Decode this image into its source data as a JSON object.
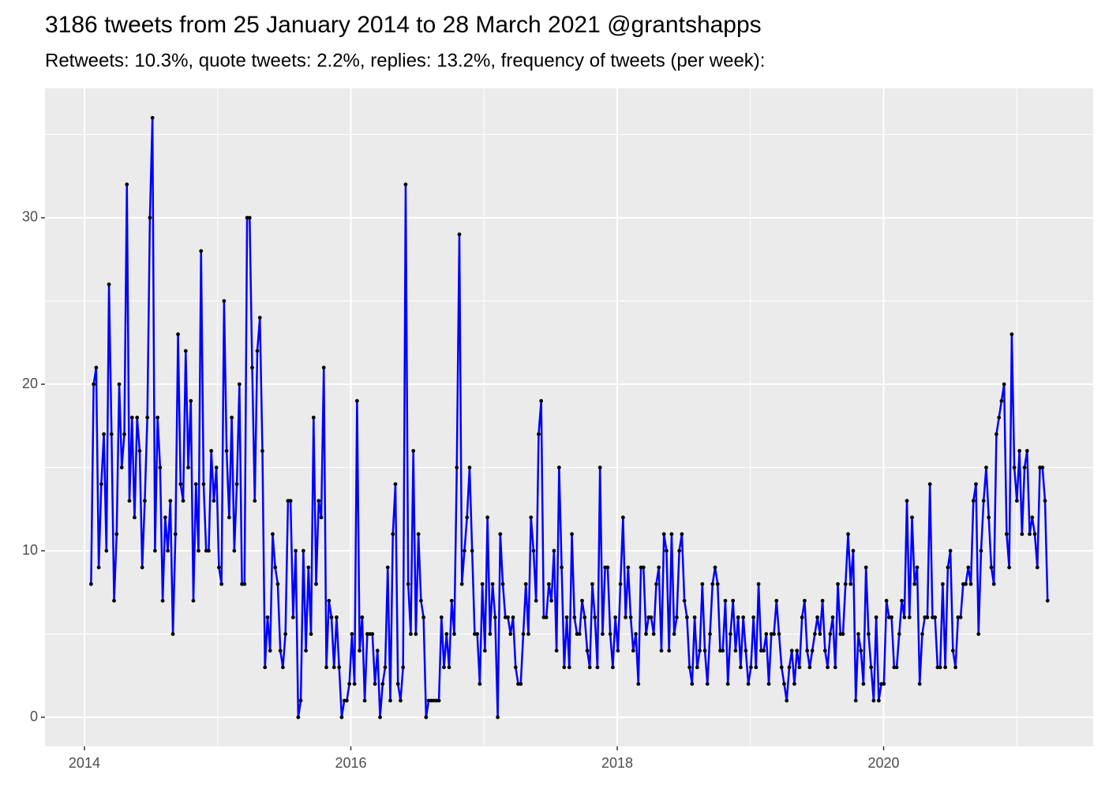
{
  "chart_data": {
    "type": "line",
    "title": "3186 tweets from 25 January 2014 to 28 March 2021 @grantshapps",
    "subtitle": "Retweets: 10.3%, quote tweets: 2.2%, replies: 13.2%, frequency of tweets (per week):",
    "xlim": [
      2013.704,
      2021.573
    ],
    "xticks": [
      2014,
      2016,
      2018,
      2020
    ],
    "ylim": [
      -1.75,
      37.77
    ],
    "yticks": [
      0,
      10,
      20,
      30
    ],
    "grid": true,
    "point_color": "#000000",
    "x": [
      2014.05,
      2014.0692,
      2014.0884,
      2014.1076,
      2014.1268,
      2014.146,
      2014.1652,
      2014.1844,
      2014.2036,
      2014.2228,
      2014.242,
      2014.2612,
      2014.2804,
      2014.2996,
      2014.3188,
      2014.338,
      2014.3572,
      2014.3764,
      2014.3956,
      2014.4148,
      2014.434,
      2014.4532,
      2014.4724,
      2014.4916,
      2014.5108,
      2014.53,
      2014.5492,
      2014.5684,
      2014.5876,
      2014.6068,
      2014.626,
      2014.6452,
      2014.6644,
      2014.6836,
      2014.7028,
      2014.722,
      2014.7412,
      2014.7604,
      2014.7796,
      2014.7988,
      2014.818,
      2014.8372,
      2014.8564,
      2014.8756,
      2014.8948,
      2014.914,
      2014.9332,
      2014.9524,
      2014.9716,
      2014.9908,
      2015.01,
      2015.0292,
      2015.0484,
      2015.0676,
      2015.0868,
      2015.106,
      2015.1252,
      2015.1444,
      2015.1636,
      2015.1828,
      2015.202,
      2015.2212,
      2015.2404,
      2015.2596,
      2015.2788,
      2015.298,
      2015.3172,
      2015.3364,
      2015.3556,
      2015.3748,
      2015.394,
      2015.4132,
      2015.4324,
      2015.4516,
      2015.4708,
      2015.49,
      2015.5092,
      2015.5284,
      2015.5476,
      2015.5668,
      2015.586,
      2015.6052,
      2015.6244,
      2015.6436,
      2015.6628,
      2015.682,
      2015.7012,
      2015.7204,
      2015.7396,
      2015.7588,
      2015.778,
      2015.7972,
      2015.8164,
      2015.8356,
      2015.8548,
      2015.874,
      2015.8932,
      2015.9124,
      2015.9316,
      2015.9508,
      2015.97,
      2015.9892,
      2016.0084,
      2016.0276,
      2016.0468,
      2016.066,
      2016.0852,
      2016.1044,
      2016.1236,
      2016.1428,
      2016.162,
      2016.1812,
      2016.2004,
      2016.2196,
      2016.2388,
      2016.258,
      2016.2772,
      2016.2964,
      2016.3156,
      2016.3348,
      2016.354,
      2016.3732,
      2016.3924,
      2016.4116,
      2016.4308,
      2016.45,
      2016.4692,
      2016.4884,
      2016.5076,
      2016.5268,
      2016.546,
      2016.5652,
      2016.5844,
      2016.6036,
      2016.6228,
      2016.642,
      2016.6612,
      2016.6804,
      2016.6996,
      2016.7188,
      2016.738,
      2016.7572,
      2016.7764,
      2016.7956,
      2016.8148,
      2016.834,
      2016.8532,
      2016.8724,
      2016.8916,
      2016.9108,
      2016.93,
      2016.9492,
      2016.9684,
      2016.9876,
      2017.0068,
      2017.026,
      2017.0452,
      2017.0644,
      2017.0836,
      2017.1028,
      2017.122,
      2017.1412,
      2017.1604,
      2017.1796,
      2017.1988,
      2017.218,
      2017.2372,
      2017.2564,
      2017.2756,
      2017.2948,
      2017.314,
      2017.3332,
      2017.3524,
      2017.3716,
      2017.3908,
      2017.41,
      2017.4292,
      2017.4484,
      2017.4676,
      2017.4868,
      2017.506,
      2017.5252,
      2017.5444,
      2017.5636,
      2017.5828,
      2017.602,
      2017.6212,
      2017.6404,
      2017.6596,
      2017.6788,
      2017.698,
      2017.7172,
      2017.7364,
      2017.7556,
      2017.7748,
      2017.794,
      2017.8132,
      2017.8324,
      2017.8516,
      2017.8708,
      2017.89,
      2017.9092,
      2017.9284,
      2017.9476,
      2017.9668,
      2017.986,
      2018.0052,
      2018.0244,
      2018.0436,
      2018.0628,
      2018.082,
      2018.1012,
      2018.1204,
      2018.1396,
      2018.1588,
      2018.178,
      2018.1972,
      2018.2164,
      2018.2356,
      2018.2548,
      2018.274,
      2018.2932,
      2018.3124,
      2018.3316,
      2018.3508,
      2018.37,
      2018.3892,
      2018.4084,
      2018.4276,
      2018.4468,
      2018.466,
      2018.4852,
      2018.5044,
      2018.5236,
      2018.5428,
      2018.562,
      2018.5812,
      2018.6004,
      2018.6196,
      2018.6388,
      2018.658,
      2018.6772,
      2018.6964,
      2018.7156,
      2018.7348,
      2018.754,
      2018.7732,
      2018.7924,
      2018.8116,
      2018.8308,
      2018.85,
      2018.8692,
      2018.8884,
      2018.9076,
      2018.9268,
      2018.946,
      2018.9652,
      2018.9844,
      2019.0036,
      2019.0228,
      2019.042,
      2019.0612,
      2019.0804,
      2019.0996,
      2019.1188,
      2019.138,
      2019.1572,
      2019.1764,
      2019.1956,
      2019.2148,
      2019.234,
      2019.2532,
      2019.2724,
      2019.2916,
      2019.3108,
      2019.33,
      2019.3492,
      2019.3684,
      2019.3876,
      2019.4068,
      2019.426,
      2019.4452,
      2019.4644,
      2019.4836,
      2019.5028,
      2019.522,
      2019.5412,
      2019.5604,
      2019.5796,
      2019.5988,
      2019.618,
      2019.6372,
      2019.6564,
      2019.6756,
      2019.6948,
      2019.714,
      2019.7332,
      2019.7524,
      2019.7716,
      2019.7908,
      2019.81,
      2019.8292,
      2019.8484,
      2019.8676,
      2019.8868,
      2019.906,
      2019.9252,
      2019.9444,
      2019.9636,
      2019.9828,
      2020.002,
      2020.0212,
      2020.0404,
      2020.0596,
      2020.0788,
      2020.098,
      2020.1172,
      2020.1364,
      2020.1556,
      2020.1748,
      2020.194,
      2020.2132,
      2020.2324,
      2020.2516,
      2020.2708,
      2020.29,
      2020.3092,
      2020.3284,
      2020.3476,
      2020.3668,
      2020.386,
      2020.4052,
      2020.4244,
      2020.4436,
      2020.4628,
      2020.482,
      2020.5012,
      2020.5204,
      2020.5396,
      2020.5588,
      2020.578,
      2020.5972,
      2020.6164,
      2020.6356,
      2020.6548,
      2020.674,
      2020.6932,
      2020.7124,
      2020.7316,
      2020.7508,
      2020.77,
      2020.7892,
      2020.8084,
      2020.8276,
      2020.8468,
      2020.866,
      2020.8852,
      2020.9044,
      2020.9236,
      2020.9428,
      2020.962,
      2020.9812,
      2021.0004,
      2021.0196,
      2021.0388,
      2021.058,
      2021.0772,
      2021.0964,
      2021.1156,
      2021.1348,
      2021.154,
      2021.1732,
      2021.1924,
      2021.2116,
      2021.2308
    ],
    "series": [
      {
        "color": "#0000ff",
        "values": [
          8,
          20,
          21,
          9,
          14,
          17,
          10,
          26,
          17,
          7,
          11,
          20,
          15,
          17,
          32,
          13,
          18,
          12,
          18,
          16,
          9,
          13,
          18,
          30,
          36,
          10,
          18,
          15,
          7,
          12,
          10,
          13,
          5,
          11,
          23,
          14,
          13,
          22,
          15,
          19,
          7,
          14,
          10,
          28,
          14,
          10,
          10,
          16,
          13,
          15,
          9,
          8,
          25,
          16,
          12,
          18,
          10,
          14,
          20,
          8,
          8,
          30,
          30,
          21,
          13,
          22,
          24,
          16,
          3,
          6,
          4,
          11,
          9,
          8,
          4,
          3,
          5,
          13,
          13,
          6,
          10,
          0,
          1,
          10,
          4,
          9,
          5,
          18,
          8,
          13,
          12,
          21,
          3,
          7,
          6,
          3,
          6,
          3,
          0,
          1,
          1,
          2,
          5,
          2,
          19,
          4,
          6,
          1,
          5,
          5,
          5,
          2,
          4,
          0,
          2,
          3,
          9,
          1,
          11,
          14,
          2,
          1,
          3,
          32,
          8,
          5,
          16,
          5,
          11,
          7,
          6,
          0,
          1,
          1,
          1,
          1,
          1,
          6,
          3,
          5,
          3,
          7,
          5,
          15,
          29,
          8,
          10,
          12,
          15,
          10,
          5,
          5,
          2,
          8,
          4,
          12,
          5,
          8,
          6,
          0,
          11,
          8,
          6,
          6,
          5,
          6,
          3,
          2,
          2,
          5,
          8,
          5,
          12,
          10,
          7,
          17,
          19,
          6,
          6,
          8,
          7,
          10,
          4,
          15,
          9,
          3,
          6,
          3,
          11,
          6,
          5,
          5,
          7,
          6,
          4,
          3,
          8,
          6,
          3,
          15,
          5,
          9,
          9,
          5,
          3,
          6,
          4,
          8,
          12,
          6,
          9,
          6,
          4,
          5,
          2,
          9,
          9,
          5,
          6,
          6,
          5,
          8,
          9,
          4,
          11,
          10,
          4,
          11,
          5,
          6,
          10,
          11,
          7,
          6,
          3,
          2,
          6,
          3,
          4,
          8,
          4,
          2,
          5,
          8,
          9,
          8,
          4,
          4,
          7,
          2,
          5,
          7,
          4,
          6,
          3,
          6,
          4,
          2,
          3,
          6,
          3,
          8,
          4,
          4,
          5,
          2,
          5,
          5,
          7,
          5,
          3,
          2,
          1,
          3,
          4,
          2,
          4,
          3,
          6,
          7,
          4,
          3,
          4,
          5,
          6,
          5,
          7,
          4,
          3,
          5,
          6,
          3,
          8,
          5,
          5,
          8,
          11,
          8,
          10,
          1,
          5,
          4,
          2,
          9,
          5,
          3,
          1,
          6,
          1,
          2,
          2,
          7,
          6,
          6,
          3,
          3,
          5,
          7,
          6,
          13,
          6,
          12,
          8,
          9,
          2,
          5,
          6,
          6,
          14,
          6,
          6,
          3,
          3,
          8,
          3,
          9,
          10,
          4,
          3,
          6,
          6,
          8,
          8,
          9,
          8,
          13,
          14,
          5,
          10,
          13,
          15,
          12,
          9,
          8,
          17,
          18,
          19,
          20,
          11,
          9,
          23,
          15,
          13,
          16,
          11,
          15,
          16,
          11,
          12,
          11,
          9,
          15,
          15,
          13,
          7
        ]
      }
    ]
  }
}
